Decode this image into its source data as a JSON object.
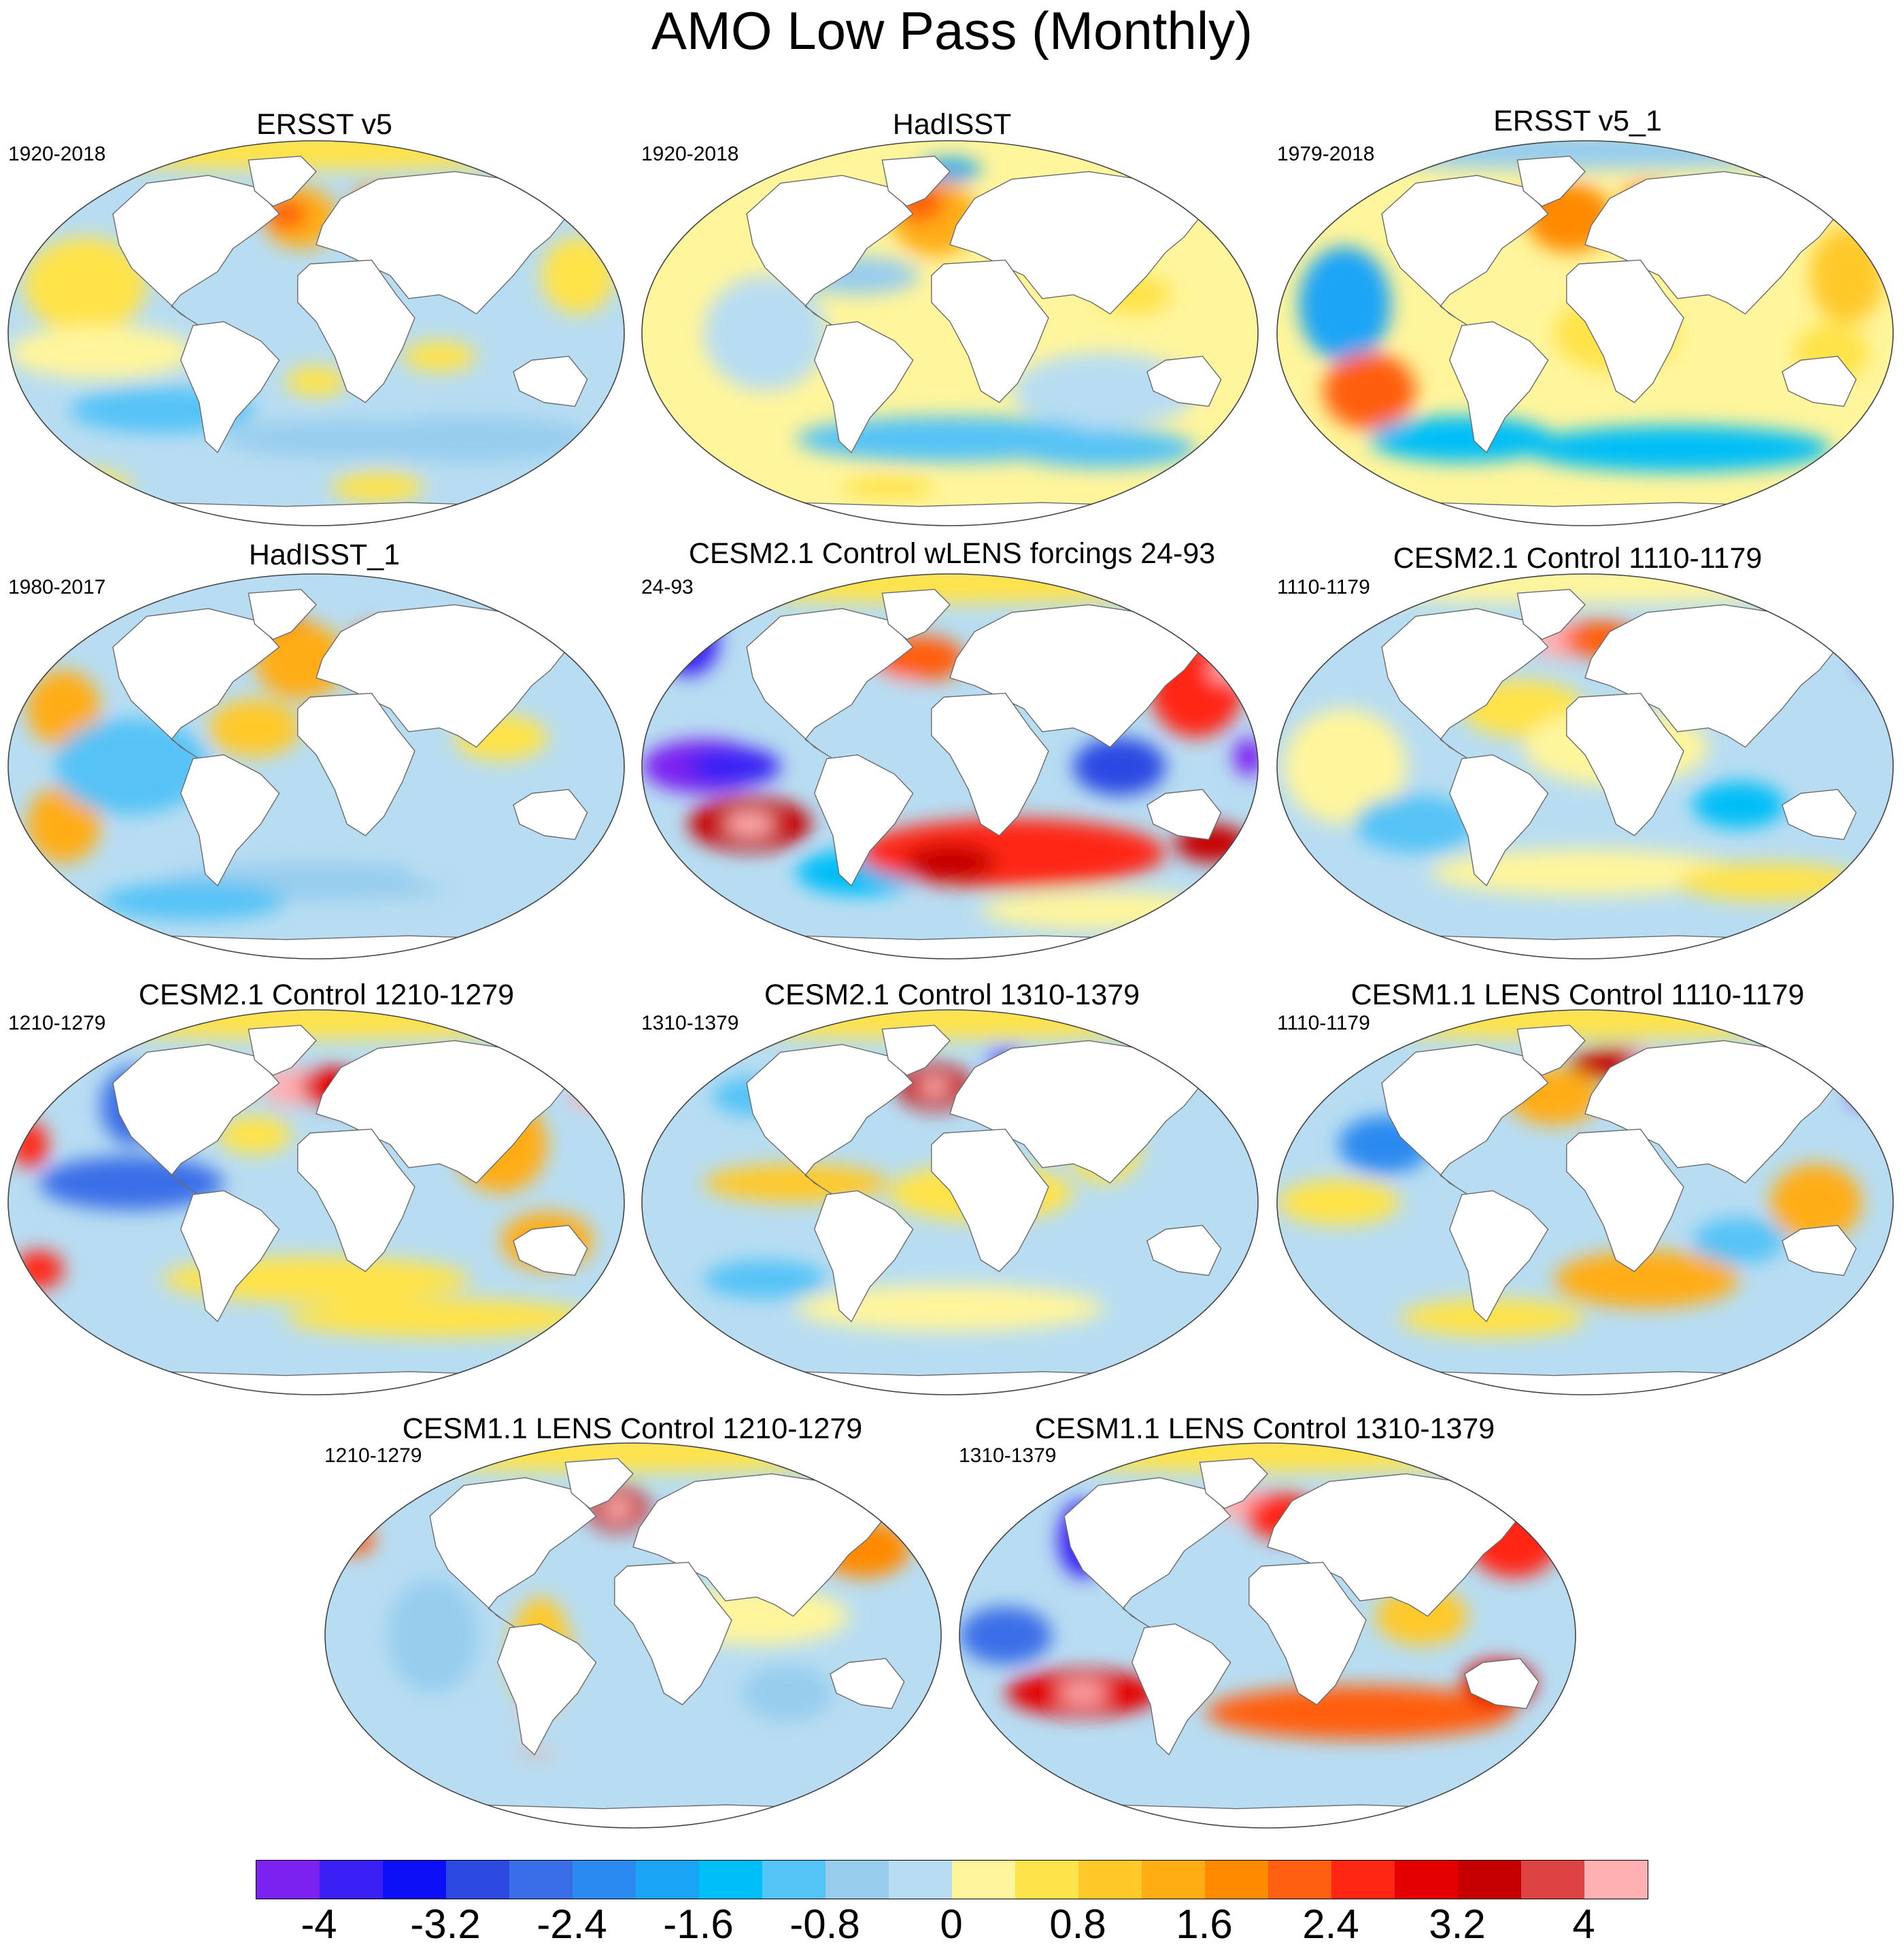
{
  "title": "AMO Low Pass (Monthly)",
  "panels": [
    {
      "title": "ERSST v5",
      "period": "1920-2018",
      "style": "ersst"
    },
    {
      "title": "HadISST",
      "period": "1920-2018",
      "style": "hadisst"
    },
    {
      "title": "ERSST v5_1",
      "period": "1979-2018",
      "style": "ersst1"
    },
    {
      "title": "HadISST_1",
      "period": "1980-2017",
      "style": "hadisst1"
    },
    {
      "title": "CESM2.1 Control wLENS forcings 24-93",
      "period": "24-93",
      "style": "wlens"
    },
    {
      "title": "CESM2.1 Control 1110-1179",
      "period": "1110-1179",
      "style": "c2a"
    },
    {
      "title": "CESM2.1 Control 1210-1279",
      "period": "1210-1279",
      "style": "c2b"
    },
    {
      "title": "CESM2.1 Control 1310-1379",
      "period": "1310-1379",
      "style": "c2c"
    },
    {
      "title": "CESM1.1 LENS Control 1110-1179",
      "period": "1110-1179",
      "style": "c1a"
    },
    {
      "title": "CESM1.1 LENS Control 1210-1279",
      "period": "1210-1279",
      "style": "c1b"
    },
    {
      "title": "CESM1.1 LENS Control 1310-1379",
      "period": "1310-1379",
      "style": "c1c"
    }
  ],
  "colorbar": {
    "colors": [
      "#7b22f0",
      "#3a20f4",
      "#0d10f6",
      "#2c49e2",
      "#3a6ee8",
      "#2b8af0",
      "#1aa4f6",
      "#00bef7",
      "#54c3f6",
      "#98cdee",
      "#b8ddf2",
      "#fff59c",
      "#ffe34a",
      "#ffc92a",
      "#ffad12",
      "#ff8a00",
      "#ff5f10",
      "#ff2614",
      "#e40000",
      "#c60000",
      "#dc4444",
      "#ffb0b2"
    ],
    "ticks": [
      "-4",
      "-3.2",
      "-2.4",
      "-1.6",
      "-0.8",
      "0",
      "0.8",
      "1.6",
      "2.4",
      "3.2",
      "4"
    ],
    "tick_values": [
      -4,
      -3.2,
      -2.4,
      -1.6,
      -0.8,
      0,
      0.8,
      1.6,
      2.4,
      3.2,
      4
    ],
    "range": [
      -4.4,
      4.4
    ]
  }
}
